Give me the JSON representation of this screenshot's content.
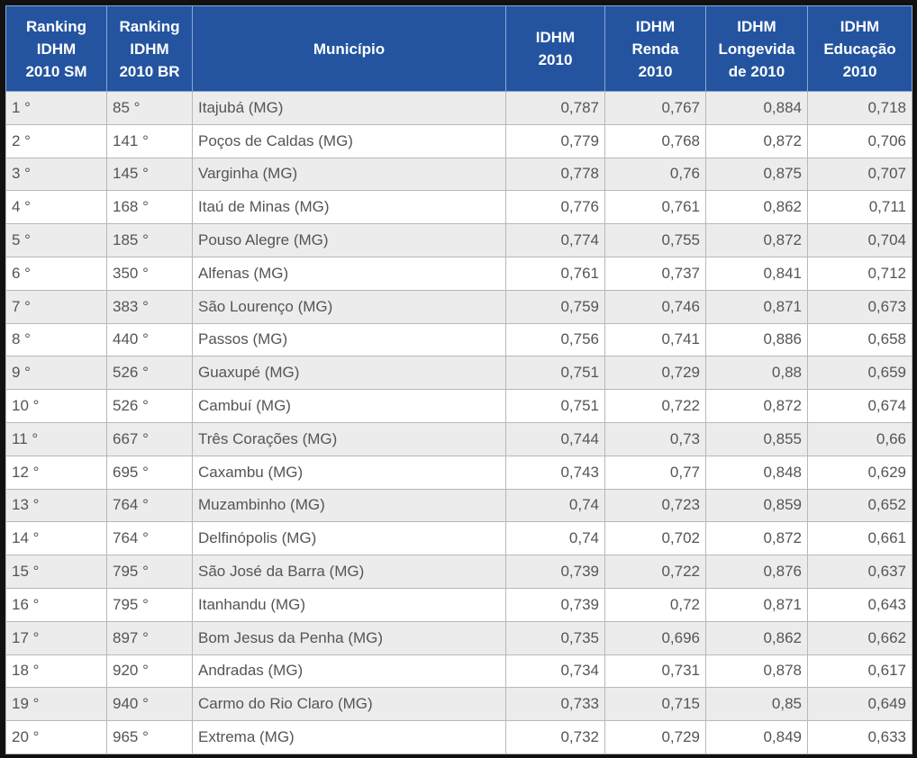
{
  "table": {
    "header": [
      "Ranking\nIDHM\n2010 SM",
      "Ranking\nIDHM\n2010 BR",
      "Município",
      "IDHM\n2010",
      "IDHM\nRenda\n2010",
      "IDHM\nLongevida\nde 2010",
      "IDHM\nEducação\n2010"
    ],
    "rows": [
      [
        "1 °",
        "85 °",
        "Itajubá (MG)",
        "0,787",
        "0,767",
        "0,884",
        "0,718"
      ],
      [
        "2 °",
        "141 °",
        "Poços de Caldas (MG)",
        "0,779",
        "0,768",
        "0,872",
        "0,706"
      ],
      [
        "3 °",
        "145 °",
        "Varginha (MG)",
        "0,778",
        "0,76",
        "0,875",
        "0,707"
      ],
      [
        "4 °",
        "168 °",
        "Itaú de Minas (MG)",
        "0,776",
        "0,761",
        "0,862",
        "0,711"
      ],
      [
        "5 °",
        "185 °",
        "Pouso Alegre (MG)",
        "0,774",
        "0,755",
        "0,872",
        "0,704"
      ],
      [
        "6 °",
        "350 °",
        "Alfenas (MG)",
        "0,761",
        "0,737",
        "0,841",
        "0,712"
      ],
      [
        "7 °",
        "383 °",
        "São Lourenço (MG)",
        "0,759",
        "0,746",
        "0,871",
        "0,673"
      ],
      [
        "8 °",
        "440 °",
        "Passos (MG)",
        "0,756",
        "0,741",
        "0,886",
        "0,658"
      ],
      [
        "9 °",
        "526 °",
        "Guaxupé (MG)",
        "0,751",
        "0,729",
        "0,88",
        "0,659"
      ],
      [
        "10 °",
        "526 °",
        "Cambuí (MG)",
        "0,751",
        "0,722",
        "0,872",
        "0,674"
      ],
      [
        "11 °",
        "667 °",
        "Três Corações (MG)",
        "0,744",
        "0,73",
        "0,855",
        "0,66"
      ],
      [
        "12 °",
        "695 °",
        "Caxambu (MG)",
        "0,743",
        "0,77",
        "0,848",
        "0,629"
      ],
      [
        "13 °",
        "764 °",
        "Muzambinho (MG)",
        "0,74",
        "0,723",
        "0,859",
        "0,652"
      ],
      [
        "14 °",
        "764 °",
        "Delfinópolis (MG)",
        "0,74",
        "0,702",
        "0,872",
        "0,661"
      ],
      [
        "15 °",
        "795 °",
        "São José da Barra (MG)",
        "0,739",
        "0,722",
        "0,876",
        "0,637"
      ],
      [
        "16 °",
        "795 °",
        "Itanhandu (MG)",
        "0,739",
        "0,72",
        "0,871",
        "0,643"
      ],
      [
        "17 °",
        "897 °",
        "Bom Jesus da Penha (MG)",
        "0,735",
        "0,696",
        "0,862",
        "0,662"
      ],
      [
        "18 °",
        "920 °",
        "Andradas (MG)",
        "0,734",
        "0,731",
        "0,878",
        "0,617"
      ],
      [
        "19 °",
        "940 °",
        "Carmo do Rio Claro (MG)",
        "0,733",
        "0,715",
        "0,85",
        "0,649"
      ],
      [
        "20 °",
        "965 °",
        "Extrema (MG)",
        "0,732",
        "0,729",
        "0,849",
        "0,633"
      ]
    ]
  }
}
